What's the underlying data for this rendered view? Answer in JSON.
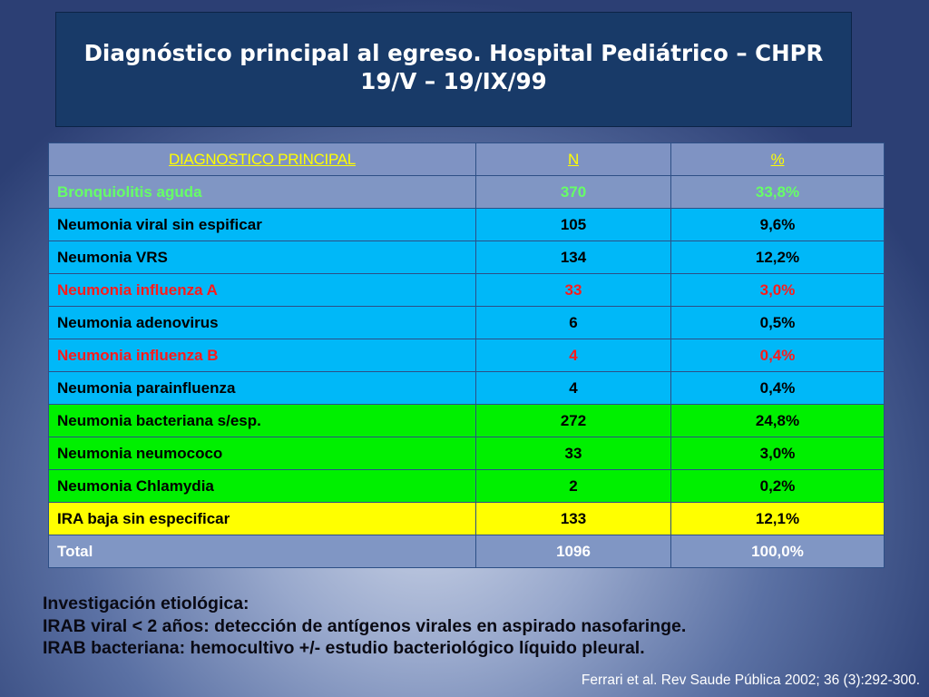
{
  "slide": {
    "title_line1": "Diagnóstico principal al egreso. Hospital Pediátrico – CHPR",
    "title_line2": "19/V – 19/IX/99"
  },
  "table": {
    "headers": [
      "DIAGNOSTICO PRINCIPAL",
      "N",
      "%"
    ],
    "rows": [
      {
        "diagnosis": "Bronquiolitis aguda",
        "n": "370",
        "pct": "33,8%",
        "row_color": "#8096c4",
        "text_color": "#66ff66"
      },
      {
        "diagnosis": "Neumonia viral sin espificar",
        "n": "105",
        "pct": "9,6%",
        "row_color": "#00b8f8",
        "text_color": "#000000"
      },
      {
        "diagnosis": "Neumonia VRS",
        "n": "134",
        "pct": "12,2%",
        "row_color": "#00b8f8",
        "text_color": "#000000"
      },
      {
        "diagnosis": "Neumonia influenza A",
        "n": "33",
        "pct": "3,0%",
        "row_color": "#00b8f8",
        "text_color": "#ff1a1a"
      },
      {
        "diagnosis": "Neumonia adenovirus",
        "n": "6",
        "pct": "0,5%",
        "row_color": "#00b8f8",
        "text_color": "#000000"
      },
      {
        "diagnosis": "Neumonia influenza B",
        "n": "4",
        "pct": "0,4%",
        "row_color": "#00b8f8",
        "text_color": "#ff1a1a"
      },
      {
        "diagnosis": "Neumonia parainfluenza",
        "n": "4",
        "pct": "0,4%",
        "row_color": "#00b8f8",
        "text_color": "#000000"
      },
      {
        "diagnosis": "Neumonia bacteriana s/esp.",
        "n": "272",
        "pct": "24,8%",
        "row_color": "#00f000",
        "text_color": "#000000"
      },
      {
        "diagnosis": "Neumonia neumococo",
        "n": "33",
        "pct": "3,0%",
        "row_color": "#00f000",
        "text_color": "#000000"
      },
      {
        "diagnosis": "Neumonia Chlamydia",
        "n": "2",
        "pct": "0,2%",
        "row_color": "#00f000",
        "text_color": "#000000"
      },
      {
        "diagnosis": "IRA baja sin especificar",
        "n": "133",
        "pct": "12,1%",
        "row_color": "#ffff00",
        "text_color": "#000000"
      },
      {
        "diagnosis": "Total",
        "n": "1096",
        "pct": "100,0%",
        "row_color": "#8096c4",
        "text_color": "#ffffff"
      }
    ]
  },
  "notes": {
    "line1": "Investigación etiológica:",
    "line2": "IRAB viral < 2 años: detección de antígenos virales en aspirado nasofaringe.",
    "line3": "IRAB bacteriana: hemocultivo +/- estudio bacteriológico líquido pleural."
  },
  "citation": "Ferrari et al. Rev Saude Pública 2002; 36 (3):292-300."
}
